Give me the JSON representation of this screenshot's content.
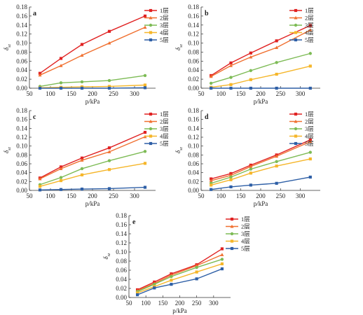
{
  "figure": {
    "xlabel": "p/kPa"
  },
  "chart_data": [
    {
      "panel": "a",
      "type": "line",
      "ylabel": "δ",
      "ysub": "sz",
      "xlim": [
        50,
        350
      ],
      "ylim": [
        0,
        0.18
      ],
      "xticks": [
        50,
        100,
        150,
        200,
        250,
        300
      ],
      "yticks": [
        0,
        0.02,
        0.04,
        0.06,
        0.08,
        0.1,
        0.12,
        0.14,
        0.16,
        0.18
      ],
      "legend_position": "top-right",
      "series": [
        {
          "name": "1层",
          "color": "#e02222",
          "marker": "square",
          "x": [
            75,
            125,
            175,
            240,
            325
          ],
          "y": [
            0.033,
            0.066,
            0.097,
            0.126,
            0.16
          ]
        },
        {
          "name": "2层",
          "color": "#f07030",
          "marker": "triangle",
          "x": [
            75,
            125,
            175,
            240,
            325
          ],
          "y": [
            0.029,
            0.05,
            0.073,
            0.1,
            0.135
          ]
        },
        {
          "name": "3层",
          "color": "#7dbb55",
          "marker": "circle",
          "x": [
            75,
            125,
            175,
            240,
            325
          ],
          "y": [
            0.004,
            0.012,
            0.014,
            0.017,
            0.028
          ]
        },
        {
          "name": "4层",
          "color": "#f5b62a",
          "marker": "square",
          "x": [
            75,
            125,
            175,
            240,
            325
          ],
          "y": [
            0.001,
            0.002,
            0.003,
            0.004,
            0.007
          ]
        },
        {
          "name": "5层",
          "color": "#2e5fa6",
          "marker": "square",
          "x": [
            75,
            125,
            175,
            240,
            325
          ],
          "y": [
            0.0,
            0.0,
            0.0,
            0.0,
            0.001
          ]
        }
      ]
    },
    {
      "panel": "b",
      "type": "line",
      "ylabel": "δ",
      "ysub": "sz",
      "xlim": [
        50,
        350
      ],
      "ylim": [
        0,
        0.18
      ],
      "xticks": [
        50,
        100,
        150,
        200,
        250,
        300
      ],
      "yticks": [
        0,
        0.02,
        0.04,
        0.06,
        0.08,
        0.1,
        0.12,
        0.14,
        0.16,
        0.18
      ],
      "legend_position": "top-right",
      "series": [
        {
          "name": "1层",
          "color": "#e02222",
          "marker": "square",
          "x": [
            75,
            125,
            175,
            240,
            325
          ],
          "y": [
            0.028,
            0.056,
            0.078,
            0.105,
            0.139
          ]
        },
        {
          "name": "2层",
          "color": "#f07030",
          "marker": "triangle",
          "x": [
            75,
            125,
            175,
            240,
            325
          ],
          "y": [
            0.026,
            0.05,
            0.069,
            0.09,
            0.129
          ]
        },
        {
          "name": "3层",
          "color": "#7dbb55",
          "marker": "circle",
          "x": [
            75,
            125,
            175,
            240,
            325
          ],
          "y": [
            0.011,
            0.024,
            0.039,
            0.057,
            0.077
          ]
        },
        {
          "name": "4层",
          "color": "#f5b62a",
          "marker": "square",
          "x": [
            75,
            125,
            175,
            240,
            325
          ],
          "y": [
            0.002,
            0.008,
            0.019,
            0.031,
            0.049
          ]
        },
        {
          "name": "5层",
          "color": "#2e5fa6",
          "marker": "square",
          "x": [
            75,
            125,
            175,
            240,
            325
          ],
          "y": [
            0.0,
            0.0,
            0.0,
            0.0,
            0.0
          ]
        }
      ]
    },
    {
      "panel": "c",
      "type": "line",
      "ylabel": "δ",
      "ysub": "sz",
      "xlim": [
        50,
        350
      ],
      "ylim": [
        0,
        0.18
      ],
      "xticks": [
        50,
        100,
        150,
        200,
        250,
        300
      ],
      "yticks": [
        0,
        0.02,
        0.04,
        0.06,
        0.08,
        0.1,
        0.12,
        0.14,
        0.16,
        0.18
      ],
      "legend_position": "top-right",
      "series": [
        {
          "name": "1层",
          "color": "#e02222",
          "marker": "square",
          "x": [
            75,
            125,
            175,
            240,
            325
          ],
          "y": [
            0.028,
            0.053,
            0.073,
            0.096,
            0.131
          ]
        },
        {
          "name": "2层",
          "color": "#f07030",
          "marker": "triangle",
          "x": [
            75,
            125,
            175,
            240,
            325
          ],
          "y": [
            0.026,
            0.049,
            0.068,
            0.087,
            0.121
          ]
        },
        {
          "name": "3层",
          "color": "#7dbb55",
          "marker": "circle",
          "x": [
            75,
            125,
            175,
            240,
            325
          ],
          "y": [
            0.013,
            0.029,
            0.049,
            0.067,
            0.088
          ]
        },
        {
          "name": "4层",
          "color": "#f5b62a",
          "marker": "square",
          "x": [
            75,
            125,
            175,
            240,
            325
          ],
          "y": [
            0.009,
            0.022,
            0.035,
            0.047,
            0.061
          ]
        },
        {
          "name": "5层",
          "color": "#2e5fa6",
          "marker": "square",
          "x": [
            75,
            125,
            175,
            240,
            325
          ],
          "y": [
            0.001,
            0.002,
            0.003,
            0.004,
            0.007
          ]
        }
      ]
    },
    {
      "panel": "d",
      "type": "line",
      "ylabel": "δ",
      "ysub": "sz",
      "xlim": [
        50,
        350
      ],
      "ylim": [
        0,
        0.18
      ],
      "xticks": [
        50,
        100,
        150,
        200,
        250,
        300
      ],
      "yticks": [
        0,
        0.02,
        0.04,
        0.06,
        0.08,
        0.1,
        0.12,
        0.14,
        0.16,
        0.18
      ],
      "legend_position": "top-right",
      "series": [
        {
          "name": "1层",
          "color": "#e02222",
          "marker": "square",
          "x": [
            75,
            125,
            175,
            240,
            325
          ],
          "y": [
            0.026,
            0.038,
            0.057,
            0.08,
            0.114
          ]
        },
        {
          "name": "2层",
          "color": "#f07030",
          "marker": "triangle",
          "x": [
            75,
            125,
            175,
            240,
            325
          ],
          "y": [
            0.022,
            0.034,
            0.054,
            0.077,
            0.11
          ]
        },
        {
          "name": "3层",
          "color": "#7dbb55",
          "marker": "circle",
          "x": [
            75,
            125,
            175,
            240,
            325
          ],
          "y": [
            0.016,
            0.03,
            0.048,
            0.065,
            0.086
          ]
        },
        {
          "name": "4层",
          "color": "#f5b62a",
          "marker": "square",
          "x": [
            75,
            125,
            175,
            240,
            325
          ],
          "y": [
            0.012,
            0.024,
            0.039,
            0.055,
            0.071
          ]
        },
        {
          "name": "5层",
          "color": "#2e5fa6",
          "marker": "square",
          "x": [
            75,
            125,
            175,
            240,
            325
          ],
          "y": [
            0.002,
            0.008,
            0.012,
            0.016,
            0.03
          ]
        }
      ]
    },
    {
      "panel": "e",
      "type": "line",
      "ylabel": "δ",
      "ysub": "sz",
      "xlim": [
        50,
        350
      ],
      "ylim": [
        0,
        0.18
      ],
      "xticks": [
        50,
        100,
        150,
        200,
        250,
        300
      ],
      "yticks": [
        0,
        0.02,
        0.04,
        0.06,
        0.08,
        0.1,
        0.12,
        0.14,
        0.16,
        0.18
      ],
      "legend_position": "top-right",
      "series": [
        {
          "name": "1层",
          "color": "#e02222",
          "marker": "square",
          "x": [
            75,
            125,
            175,
            250,
            325
          ],
          "y": [
            0.017,
            0.034,
            0.052,
            0.072,
            0.107
          ]
        },
        {
          "name": "2层",
          "color": "#f07030",
          "marker": "triangle",
          "x": [
            75,
            125,
            175,
            250,
            325
          ],
          "y": [
            0.015,
            0.031,
            0.049,
            0.07,
            0.094
          ]
        },
        {
          "name": "3层",
          "color": "#7dbb55",
          "marker": "circle",
          "x": [
            75,
            125,
            175,
            250,
            325
          ],
          "y": [
            0.013,
            0.029,
            0.046,
            0.066,
            0.084
          ]
        },
        {
          "name": "4层",
          "color": "#f5b62a",
          "marker": "square",
          "x": [
            75,
            125,
            175,
            250,
            325
          ],
          "y": [
            0.01,
            0.024,
            0.038,
            0.056,
            0.074
          ]
        },
        {
          "name": "5层",
          "color": "#2e5fa6",
          "marker": "square",
          "x": [
            75,
            125,
            175,
            250,
            325
          ],
          "y": [
            0.006,
            0.021,
            0.029,
            0.041,
            0.063
          ]
        }
      ]
    }
  ]
}
